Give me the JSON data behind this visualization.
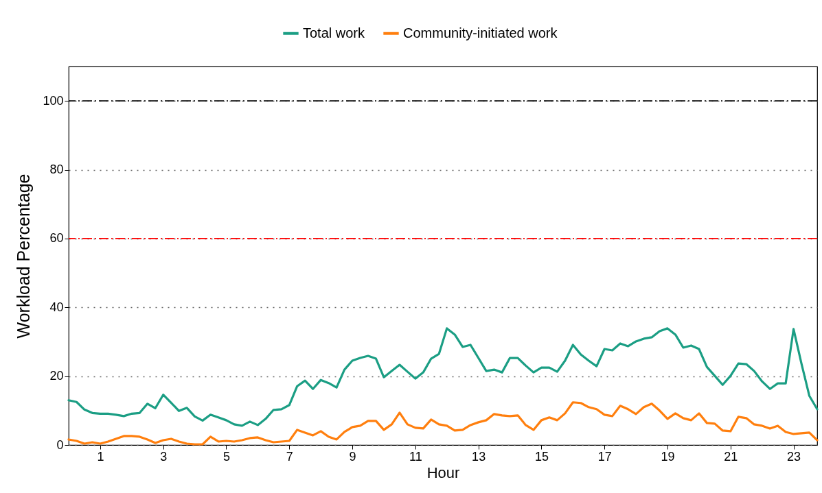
{
  "chart_data": {
    "type": "line",
    "xlabel": "Hour",
    "ylabel": "Workload Percentage",
    "x": [
      0,
      0.25,
      0.5,
      0.75,
      1,
      1.25,
      1.5,
      1.75,
      2,
      2.25,
      2.5,
      2.75,
      3,
      3.25,
      3.5,
      3.75,
      4,
      4.25,
      4.5,
      4.75,
      5,
      5.25,
      5.5,
      5.75,
      6,
      6.25,
      6.5,
      6.75,
      7,
      7.25,
      7.5,
      7.75,
      8,
      8.25,
      8.5,
      8.75,
      9,
      9.25,
      9.5,
      9.75,
      10,
      10.25,
      10.5,
      10.75,
      11,
      11.25,
      11.5,
      11.75,
      12,
      12.25,
      12.5,
      12.75,
      13,
      13.25,
      13.5,
      13.75,
      14,
      14.25,
      14.5,
      14.75,
      15,
      15.25,
      15.5,
      15.75,
      16,
      16.25,
      16.5,
      16.75,
      17,
      17.25,
      17.5,
      17.75,
      18,
      18.25,
      18.5,
      18.75,
      19,
      19.25,
      19.5,
      19.75,
      20,
      20.25,
      20.5,
      20.75,
      21,
      21.25,
      21.5,
      21.75,
      22,
      22.25,
      22.5,
      22.75,
      23,
      23.25,
      23.5,
      23.75
    ],
    "series": [
      {
        "name": "Total work",
        "color": "#1b9e84",
        "values": [
          13,
          12.5,
          10.3,
          9.3,
          9.1,
          9.1,
          8.8,
          8.4,
          9.1,
          9.3,
          12,
          10.7,
          14.6,
          12.3,
          9.9,
          10.8,
          8.3,
          7.1,
          8.8,
          8,
          7.2,
          6,
          5.6,
          6.8,
          5.8,
          7.6,
          10.2,
          10.4,
          11.6,
          17.1,
          18.7,
          16.3,
          18.9,
          18,
          16.7,
          21.9,
          24.5,
          25.3,
          25.9,
          25.1,
          19.7,
          21.5,
          23.3,
          21.3,
          19.3,
          21.1,
          25.1,
          26.5,
          33.9,
          32.1,
          28.5,
          29.1,
          25.3,
          21.5,
          21.9,
          21.1,
          25.3,
          25.3,
          23.1,
          21.1,
          22.5,
          22.5,
          21.3,
          24.5,
          29.1,
          26.3,
          24.5,
          22.9,
          27.9,
          27.5,
          29.5,
          28.7,
          30.1,
          30.9,
          31.3,
          33.1,
          33.9,
          32.1,
          28.3,
          28.9,
          27.9,
          22.7,
          20.1,
          17.5,
          20.1,
          23.7,
          23.5,
          21.5,
          18.5,
          16.3,
          17.9,
          17.9,
          33.7,
          23.7,
          14.3,
          10.4
        ]
      },
      {
        "name": "Community-initiated work",
        "color": "#ff7f0e",
        "values": [
          1.6,
          1.2,
          0.4,
          0.8,
          0.4,
          1.0,
          1.8,
          2.6,
          2.6,
          2.4,
          1.6,
          0.6,
          1.4,
          1.8,
          1.0,
          0.4,
          0.2,
          0.2,
          2.4,
          1.0,
          1.2,
          1.0,
          1.4,
          2.0,
          2.2,
          1.4,
          0.8,
          1.0,
          1.2,
          4.4,
          3.6,
          2.8,
          4.0,
          2.4,
          1.6,
          3.8,
          5.2,
          5.6,
          7.0,
          7.0,
          4.4,
          6.0,
          9.4,
          6.0,
          5.0,
          4.8,
          7.4,
          6.0,
          5.6,
          4.2,
          4.4,
          5.8,
          6.6,
          7.2,
          9.0,
          8.6,
          8.4,
          8.6,
          5.8,
          4.4,
          7.2,
          8.0,
          7.2,
          9.2,
          12.4,
          12.2,
          11.0,
          10.4,
          8.8,
          8.4,
          11.4,
          10.4,
          9.0,
          11.0,
          12.0,
          10.0,
          7.6,
          9.2,
          7.8,
          7.2,
          9.2,
          6.4,
          6.2,
          4.2,
          4.0,
          8.2,
          7.8,
          6.0,
          5.6,
          4.8,
          5.6,
          3.8,
          3.2,
          3.4,
          3.6,
          1.4
        ]
      }
    ],
    "xlim": [
      0,
      23.75
    ],
    "xticks": [
      1,
      3,
      5,
      7,
      9,
      11,
      13,
      15,
      17,
      19,
      21,
      23
    ],
    "ylim": [
      0,
      110
    ],
    "yticks": [
      0,
      20,
      40,
      60,
      80,
      100
    ],
    "grid": "y",
    "legend": "top",
    "line_style": "solid",
    "marker": "none",
    "ref_lines": [
      {
        "axis": "y",
        "value": 60,
        "color": "#ff0000",
        "line_style": "dashdot"
      },
      {
        "axis": "y",
        "value": 100,
        "color": "#000000",
        "line_style": "dashdot"
      }
    ]
  }
}
